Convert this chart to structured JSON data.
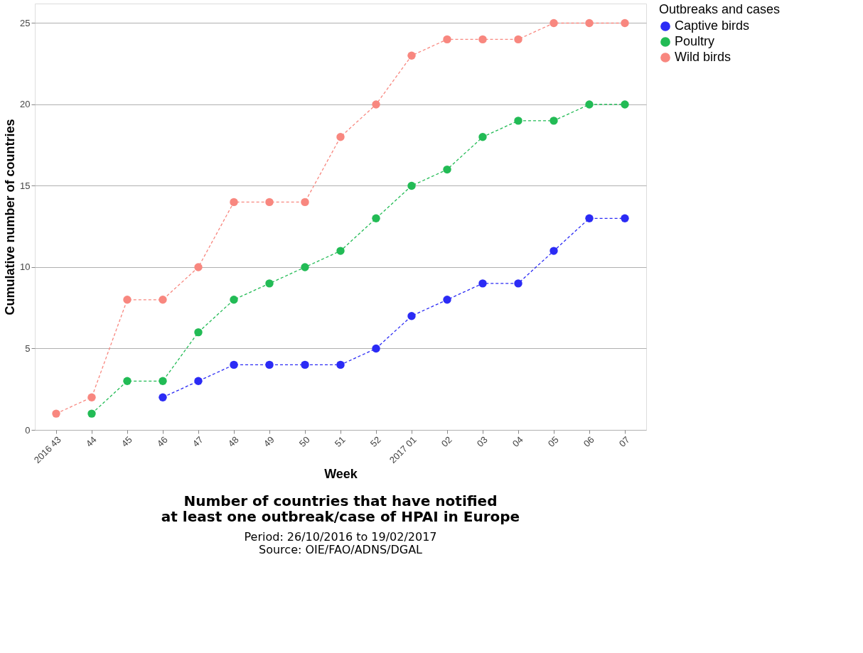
{
  "chart_data": {
    "type": "line",
    "title": "Number of countries that have notified\nat least one outbreak/case of HPAI in Europe",
    "xlabel": "Week",
    "ylabel": "Cumulative number of countries",
    "legend_title": "Outbreaks and cases",
    "categories": [
      "2016 43",
      "44",
      "45",
      "46",
      "47",
      "48",
      "49",
      "50",
      "51",
      "52",
      "2017 01",
      "02",
      "03",
      "04",
      "05",
      "06",
      "07"
    ],
    "series": [
      {
        "name": "Captive birds",
        "color": "#2b2bf5",
        "values": [
          null,
          null,
          null,
          2,
          3,
          4,
          4,
          4,
          4,
          5,
          7,
          8,
          9,
          9,
          11,
          13,
          13
        ]
      },
      {
        "name": "Poultry",
        "color": "#22bb55",
        "values": [
          null,
          1,
          3,
          3,
          6,
          8,
          9,
          10,
          11,
          13,
          15,
          16,
          18,
          19,
          19,
          20,
          20
        ]
      },
      {
        "name": "Wild birds",
        "color": "#f8877f",
        "values": [
          1,
          2,
          8,
          8,
          10,
          14,
          14,
          14,
          18,
          20,
          23,
          24,
          24,
          24,
          25,
          25,
          25
        ]
      }
    ],
    "ylim": [
      0,
      26.2
    ],
    "yticks": [
      0,
      5,
      10,
      15,
      20,
      25
    ],
    "grid": "y",
    "legend": "top right",
    "marker": "circle",
    "line_style": "dashed",
    "annotations": [
      "Period: 26/10/2016 to 19/02/2017",
      "Source: OIE/FAO/ADNS/DGAL"
    ]
  }
}
